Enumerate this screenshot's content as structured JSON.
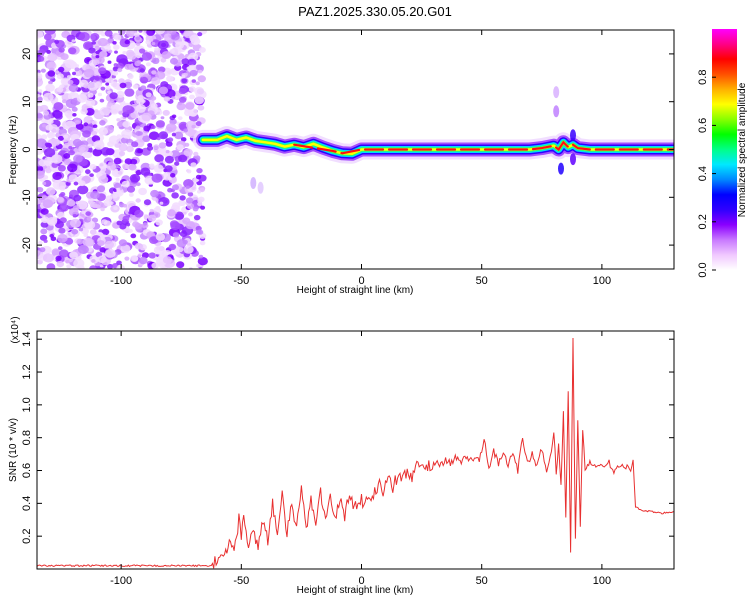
{
  "title": "PAZ1.2025.330.05.20.G01",
  "chart_data": [
    {
      "type": "heatmap",
      "id": "spectrogram",
      "xlabel": "Height of straight line (km)",
      "ylabel": "Frequency (Hz)",
      "xlim": [
        -135,
        130
      ],
      "ylim": [
        -25,
        25
      ],
      "xticks": [
        -100,
        -50,
        0,
        50,
        100
      ],
      "yticks": [
        -20,
        -10,
        0,
        10,
        20
      ],
      "xtick_labels": [
        "-100",
        "-50",
        "0",
        "50",
        "100"
      ],
      "ytick_labels": [
        "-20",
        "-10",
        "0",
        "10",
        "20"
      ],
      "noise_region_x": [
        -135,
        -66
      ],
      "signal_track": {
        "x": [
          -66,
          -60,
          -56,
          -52,
          -48,
          -44,
          -40,
          -36,
          -32,
          -28,
          -24,
          -20,
          -16,
          -12,
          -8,
          -4,
          0,
          10,
          20,
          30,
          40,
          50,
          60,
          70,
          75,
          80,
          82,
          84,
          86,
          88,
          90,
          95,
          100,
          110,
          120,
          130
        ],
        "y": [
          2,
          2,
          2.8,
          2,
          2.5,
          1.8,
          1.5,
          1.2,
          0.6,
          1,
          0.5,
          1.2,
          0.4,
          -0.3,
          -0.8,
          -0.9,
          0,
          0,
          0,
          0,
          0,
          0,
          0,
          0,
          0.3,
          0.8,
          0,
          1.5,
          0.5,
          1,
          0.3,
          0,
          0,
          0,
          0,
          0
        ]
      },
      "colorbar": {
        "label": "Normalized spectral amplitude",
        "range": [
          0,
          1
        ],
        "ticks": [
          0.0,
          0.2,
          0.4,
          0.6,
          0.8
        ],
        "tick_labels": [
          "0.0",
          "0.2",
          "0.4",
          "0.6",
          "0.8"
        ],
        "colors": [
          "#ffffff",
          "#f0c8ff",
          "#c878ff",
          "#8a00ff",
          "#3000ff",
          "#0000ff",
          "#0088ff",
          "#00e8ff",
          "#00ff88",
          "#00ff00",
          "#88ff00",
          "#ffff00",
          "#ffb000",
          "#ff5000",
          "#ff0000",
          "#ff0088",
          "#ff00ff"
        ]
      }
    },
    {
      "type": "line",
      "id": "snr",
      "xlabel": "Height of straight line (km)",
      "ylabel": "SNR (10 * v/v)",
      "yscale_label": "(x10⁴)",
      "xlim": [
        -135,
        130
      ],
      "ylim": [
        0,
        1.45
      ],
      "xticks": [
        -100,
        -50,
        0,
        50,
        100
      ],
      "yticks": [
        0.2,
        0.4,
        0.6,
        0.8,
        1.0,
        1.2,
        1.4
      ],
      "xtick_labels": [
        "-100",
        "-50",
        "0",
        "50",
        "100"
      ],
      "ytick_labels": [
        "0.2",
        "0.4",
        "0.6",
        "0.8",
        "1.0",
        "1.2",
        "1.4"
      ],
      "line_color": "#e83030",
      "series": [
        {
          "name": "SNR",
          "x": [
            -135,
            -100,
            -70,
            -63,
            -60,
            -58,
            -55,
            -53,
            -51,
            -50,
            -49,
            -47,
            -45,
            -43,
            -41,
            -39,
            -37,
            -35,
            -33,
            -31,
            -29,
            -27,
            -25,
            -23,
            -21,
            -19,
            -17,
            -15,
            -13,
            -11,
            -9,
            -7,
            -5,
            -3,
            -1,
            1,
            3,
            5,
            7,
            9,
            11,
            13,
            15,
            17,
            19,
            21,
            23,
            25,
            27,
            29,
            31,
            33,
            35,
            37,
            39,
            41,
            43,
            45,
            47,
            49,
            51,
            53,
            55,
            57,
            59,
            61,
            63,
            65,
            67,
            69,
            71,
            73,
            75,
            77,
            79,
            80,
            81,
            82,
            83,
            84,
            85,
            86,
            87,
            88,
            89,
            90,
            91,
            92,
            93,
            95,
            97,
            99,
            101,
            103,
            105,
            107,
            109,
            111,
            112,
            113,
            114,
            116,
            120,
            125,
            130
          ],
          "y": [
            0.02,
            0.02,
            0.02,
            0.02,
            0.05,
            0.08,
            0.15,
            0.12,
            0.3,
            0.18,
            0.35,
            0.14,
            0.22,
            0.15,
            0.3,
            0.18,
            0.4,
            0.2,
            0.44,
            0.22,
            0.38,
            0.25,
            0.48,
            0.25,
            0.42,
            0.3,
            0.48,
            0.28,
            0.46,
            0.3,
            0.42,
            0.33,
            0.46,
            0.36,
            0.44,
            0.4,
            0.47,
            0.44,
            0.52,
            0.47,
            0.55,
            0.5,
            0.56,
            0.55,
            0.6,
            0.56,
            0.63,
            0.61,
            0.64,
            0.62,
            0.66,
            0.63,
            0.67,
            0.64,
            0.68,
            0.65,
            0.68,
            0.66,
            0.68,
            0.66,
            0.8,
            0.62,
            0.72,
            0.64,
            0.7,
            0.63,
            0.72,
            0.6,
            0.8,
            0.64,
            0.7,
            0.62,
            0.74,
            0.6,
            0.7,
            0.85,
            0.58,
            0.75,
            0.5,
            0.95,
            0.3,
            1.1,
            0.12,
            1.4,
            0.2,
            0.9,
            0.25,
            0.85,
            0.6,
            0.66,
            0.62,
            0.64,
            0.62,
            0.65,
            0.6,
            0.64,
            0.61,
            0.63,
            0.6,
            0.66,
            0.38,
            0.36,
            0.35,
            0.34,
            0.35
          ]
        }
      ]
    }
  ]
}
